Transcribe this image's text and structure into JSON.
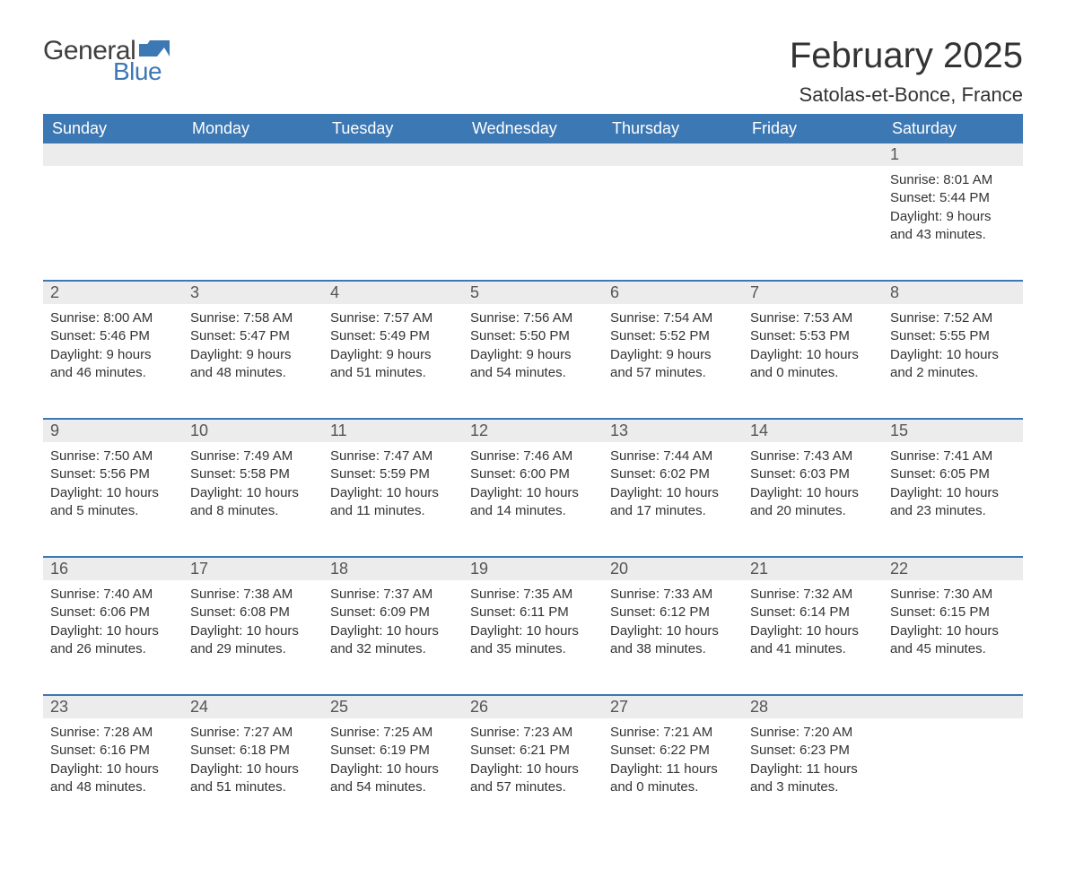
{
  "logo": {
    "text_general": "General",
    "text_blue": "Blue",
    "icon_color": "#3c78b4"
  },
  "title": "February 2025",
  "location": "Satolas-et-Bonce, France",
  "colors": {
    "header_bg": "#3c78b4",
    "header_text": "#ffffff",
    "daynum_bg": "#ececec",
    "daynum_text": "#555555",
    "body_text": "#333333",
    "week_sep": "#3c78b4"
  },
  "day_headers": [
    "Sunday",
    "Monday",
    "Tuesday",
    "Wednesday",
    "Thursday",
    "Friday",
    "Saturday"
  ],
  "weeks": [
    [
      null,
      null,
      null,
      null,
      null,
      null,
      {
        "n": "1",
        "sunrise": "Sunrise: 8:01 AM",
        "sunset": "Sunset: 5:44 PM",
        "daylight": "Daylight: 9 hours and 43 minutes."
      }
    ],
    [
      {
        "n": "2",
        "sunrise": "Sunrise: 8:00 AM",
        "sunset": "Sunset: 5:46 PM",
        "daylight": "Daylight: 9 hours and 46 minutes."
      },
      {
        "n": "3",
        "sunrise": "Sunrise: 7:58 AM",
        "sunset": "Sunset: 5:47 PM",
        "daylight": "Daylight: 9 hours and 48 minutes."
      },
      {
        "n": "4",
        "sunrise": "Sunrise: 7:57 AM",
        "sunset": "Sunset: 5:49 PM",
        "daylight": "Daylight: 9 hours and 51 minutes."
      },
      {
        "n": "5",
        "sunrise": "Sunrise: 7:56 AM",
        "sunset": "Sunset: 5:50 PM",
        "daylight": "Daylight: 9 hours and 54 minutes."
      },
      {
        "n": "6",
        "sunrise": "Sunrise: 7:54 AM",
        "sunset": "Sunset: 5:52 PM",
        "daylight": "Daylight: 9 hours and 57 minutes."
      },
      {
        "n": "7",
        "sunrise": "Sunrise: 7:53 AM",
        "sunset": "Sunset: 5:53 PM",
        "daylight": "Daylight: 10 hours and 0 minutes."
      },
      {
        "n": "8",
        "sunrise": "Sunrise: 7:52 AM",
        "sunset": "Sunset: 5:55 PM",
        "daylight": "Daylight: 10 hours and 2 minutes."
      }
    ],
    [
      {
        "n": "9",
        "sunrise": "Sunrise: 7:50 AM",
        "sunset": "Sunset: 5:56 PM",
        "daylight": "Daylight: 10 hours and 5 minutes."
      },
      {
        "n": "10",
        "sunrise": "Sunrise: 7:49 AM",
        "sunset": "Sunset: 5:58 PM",
        "daylight": "Daylight: 10 hours and 8 minutes."
      },
      {
        "n": "11",
        "sunrise": "Sunrise: 7:47 AM",
        "sunset": "Sunset: 5:59 PM",
        "daylight": "Daylight: 10 hours and 11 minutes."
      },
      {
        "n": "12",
        "sunrise": "Sunrise: 7:46 AM",
        "sunset": "Sunset: 6:00 PM",
        "daylight": "Daylight: 10 hours and 14 minutes."
      },
      {
        "n": "13",
        "sunrise": "Sunrise: 7:44 AM",
        "sunset": "Sunset: 6:02 PM",
        "daylight": "Daylight: 10 hours and 17 minutes."
      },
      {
        "n": "14",
        "sunrise": "Sunrise: 7:43 AM",
        "sunset": "Sunset: 6:03 PM",
        "daylight": "Daylight: 10 hours and 20 minutes."
      },
      {
        "n": "15",
        "sunrise": "Sunrise: 7:41 AM",
        "sunset": "Sunset: 6:05 PM",
        "daylight": "Daylight: 10 hours and 23 minutes."
      }
    ],
    [
      {
        "n": "16",
        "sunrise": "Sunrise: 7:40 AM",
        "sunset": "Sunset: 6:06 PM",
        "daylight": "Daylight: 10 hours and 26 minutes."
      },
      {
        "n": "17",
        "sunrise": "Sunrise: 7:38 AM",
        "sunset": "Sunset: 6:08 PM",
        "daylight": "Daylight: 10 hours and 29 minutes."
      },
      {
        "n": "18",
        "sunrise": "Sunrise: 7:37 AM",
        "sunset": "Sunset: 6:09 PM",
        "daylight": "Daylight: 10 hours and 32 minutes."
      },
      {
        "n": "19",
        "sunrise": "Sunrise: 7:35 AM",
        "sunset": "Sunset: 6:11 PM",
        "daylight": "Daylight: 10 hours and 35 minutes."
      },
      {
        "n": "20",
        "sunrise": "Sunrise: 7:33 AM",
        "sunset": "Sunset: 6:12 PM",
        "daylight": "Daylight: 10 hours and 38 minutes."
      },
      {
        "n": "21",
        "sunrise": "Sunrise: 7:32 AM",
        "sunset": "Sunset: 6:14 PM",
        "daylight": "Daylight: 10 hours and 41 minutes."
      },
      {
        "n": "22",
        "sunrise": "Sunrise: 7:30 AM",
        "sunset": "Sunset: 6:15 PM",
        "daylight": "Daylight: 10 hours and 45 minutes."
      }
    ],
    [
      {
        "n": "23",
        "sunrise": "Sunrise: 7:28 AM",
        "sunset": "Sunset: 6:16 PM",
        "daylight": "Daylight: 10 hours and 48 minutes."
      },
      {
        "n": "24",
        "sunrise": "Sunrise: 7:27 AM",
        "sunset": "Sunset: 6:18 PM",
        "daylight": "Daylight: 10 hours and 51 minutes."
      },
      {
        "n": "25",
        "sunrise": "Sunrise: 7:25 AM",
        "sunset": "Sunset: 6:19 PM",
        "daylight": "Daylight: 10 hours and 54 minutes."
      },
      {
        "n": "26",
        "sunrise": "Sunrise: 7:23 AM",
        "sunset": "Sunset: 6:21 PM",
        "daylight": "Daylight: 10 hours and 57 minutes."
      },
      {
        "n": "27",
        "sunrise": "Sunrise: 7:21 AM",
        "sunset": "Sunset: 6:22 PM",
        "daylight": "Daylight: 11 hours and 0 minutes."
      },
      {
        "n": "28",
        "sunrise": "Sunrise: 7:20 AM",
        "sunset": "Sunset: 6:23 PM",
        "daylight": "Daylight: 11 hours and 3 minutes."
      },
      null
    ]
  ]
}
